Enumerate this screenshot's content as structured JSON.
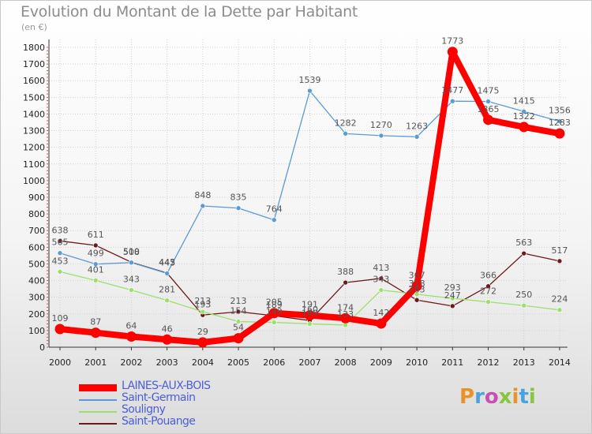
{
  "chart_data": {
    "type": "line",
    "title": "Evolution du Montant de la Dette par Habitant",
    "ylabel": "(en €)",
    "xlabel": "",
    "ylim": [
      0,
      1800
    ],
    "ytick_step": 100,
    "categories": [
      "2000",
      "2001",
      "2002",
      "2003",
      "2004",
      "2005",
      "2006",
      "2007",
      "2008",
      "2009",
      "2010",
      "2011",
      "2012",
      "2013",
      "2014"
    ],
    "series": [
      {
        "name": "Saint-Pouange",
        "color": "#6b1a1a",
        "values": [
          638,
          611,
          510,
          445,
          193,
          213,
          189,
          160,
          388,
          413,
          283,
          247,
          366,
          563,
          517
        ],
        "labels": [
          "638",
          "611",
          "510",
          "445",
          "193",
          "213",
          "189",
          "160",
          "388",
          "413",
          "283",
          "247",
          "366",
          "563",
          "517"
        ]
      },
      {
        "name": "Souligny",
        "color": "#9be06b",
        "values": [
          453,
          401,
          343,
          281,
          213,
          154,
          149,
          140,
          133,
          343,
          318,
          293,
          272,
          250,
          224
        ],
        "labels": [
          "453",
          "401",
          "343",
          "281",
          "213",
          "154",
          "149",
          "140",
          "133",
          "343",
          "318",
          "293",
          "272",
          "250",
          "224"
        ]
      },
      {
        "name": "Saint-Germain",
        "color": "#5a9bd5",
        "values": [
          565,
          499,
          508,
          443,
          848,
          835,
          764,
          1539,
          1282,
          1270,
          1263,
          1477,
          1475,
          1415,
          1356
        ],
        "labels": [
          "565",
          "499",
          "508",
          "443",
          "848",
          "835",
          "764",
          "1539",
          "1282",
          "1270",
          "1263",
          "1477",
          "1475",
          "1415",
          "1356"
        ]
      },
      {
        "name": "LAINES-AUX-BOIS",
        "color": "#ff0000",
        "values": [
          109,
          87,
          64,
          46,
          29,
          54,
          205,
          191,
          174,
          142,
          367,
          1773,
          1365,
          1322,
          1283
        ],
        "labels": [
          "109",
          "87",
          "64",
          "46",
          "29",
          "54",
          "205",
          "191",
          "174",
          "142",
          "367",
          "1773",
          "1365",
          "1322",
          "1283"
        ]
      }
    ]
  },
  "legend": {
    "items": [
      {
        "name": "LAINES-AUX-BOIS",
        "color": "#ff0000"
      },
      {
        "name": "Saint-Germain",
        "color": "#5a9bd5"
      },
      {
        "name": "Souligny",
        "color": "#9be06b"
      },
      {
        "name": "Saint-Pouange",
        "color": "#6b1a1a"
      }
    ]
  },
  "branding": {
    "logo_text": "Proxiti",
    "logo_colors": [
      "#e8922a",
      "#4aa3df",
      "#c84fb5",
      "#8bc53f",
      "#e8922a",
      "#4aa3df",
      "#8bc53f"
    ]
  }
}
